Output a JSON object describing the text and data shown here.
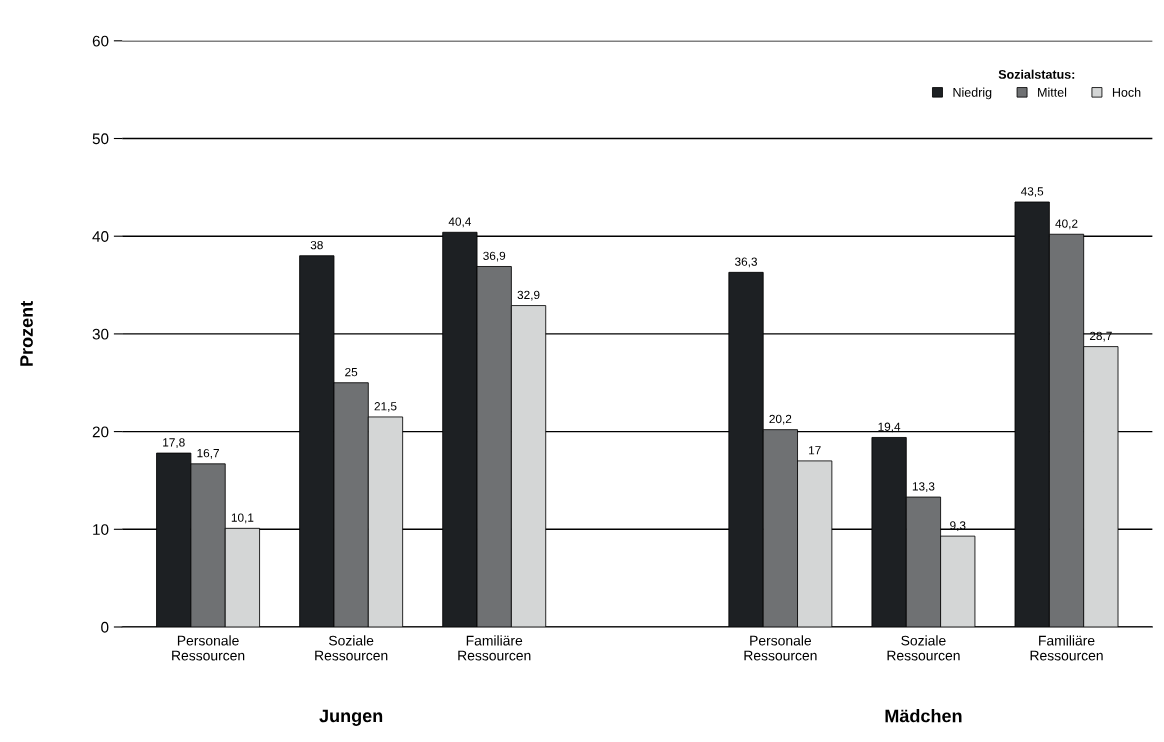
{
  "chart_data": {
    "type": "bar",
    "ylabel": "Prozent",
    "legend_title": "Sozialstatus:",
    "categories": [
      "Personale\nRessourcen",
      "Soziale\nRessourcen",
      "Familiäre\nRessourcen",
      null,
      "Personale\nRessourcen",
      "Soziale\nRessourcen",
      "Familiäre\nRessourcen"
    ],
    "series": [
      {
        "name": "Niedrig",
        "color": "#1d2023",
        "values": [
          17.8,
          38,
          40.4,
          null,
          36.3,
          19.4,
          43.5
        ],
        "value_labels": [
          "17,8",
          "38",
          "40,4",
          null,
          "36,3",
          "19,4",
          "43,5"
        ]
      },
      {
        "name": "Mittel",
        "color": "#6f7173",
        "values": [
          16.7,
          25,
          36.9,
          null,
          20.2,
          13.3,
          40.2
        ],
        "value_labels": [
          "16,7",
          "25",
          "36,9",
          null,
          "20,2",
          "13,3",
          "40,2"
        ]
      },
      {
        "name": "Hoch",
        "color": "#d4d6d6",
        "values": [
          10.1,
          21.5,
          32.9,
          null,
          17,
          9.3,
          28.7
        ],
        "value_labels": [
          "10,1",
          "21,5",
          "32,9",
          null,
          "17",
          "9,3",
          "28,7"
        ]
      }
    ],
    "annotations": [
      "Jungen",
      "Mädchen"
    ],
    "ylim": [
      0,
      60
    ],
    "yticks": [
      0,
      10,
      20,
      30,
      40,
      50,
      60
    ],
    "grid": "y",
    "legend": "top right"
  }
}
